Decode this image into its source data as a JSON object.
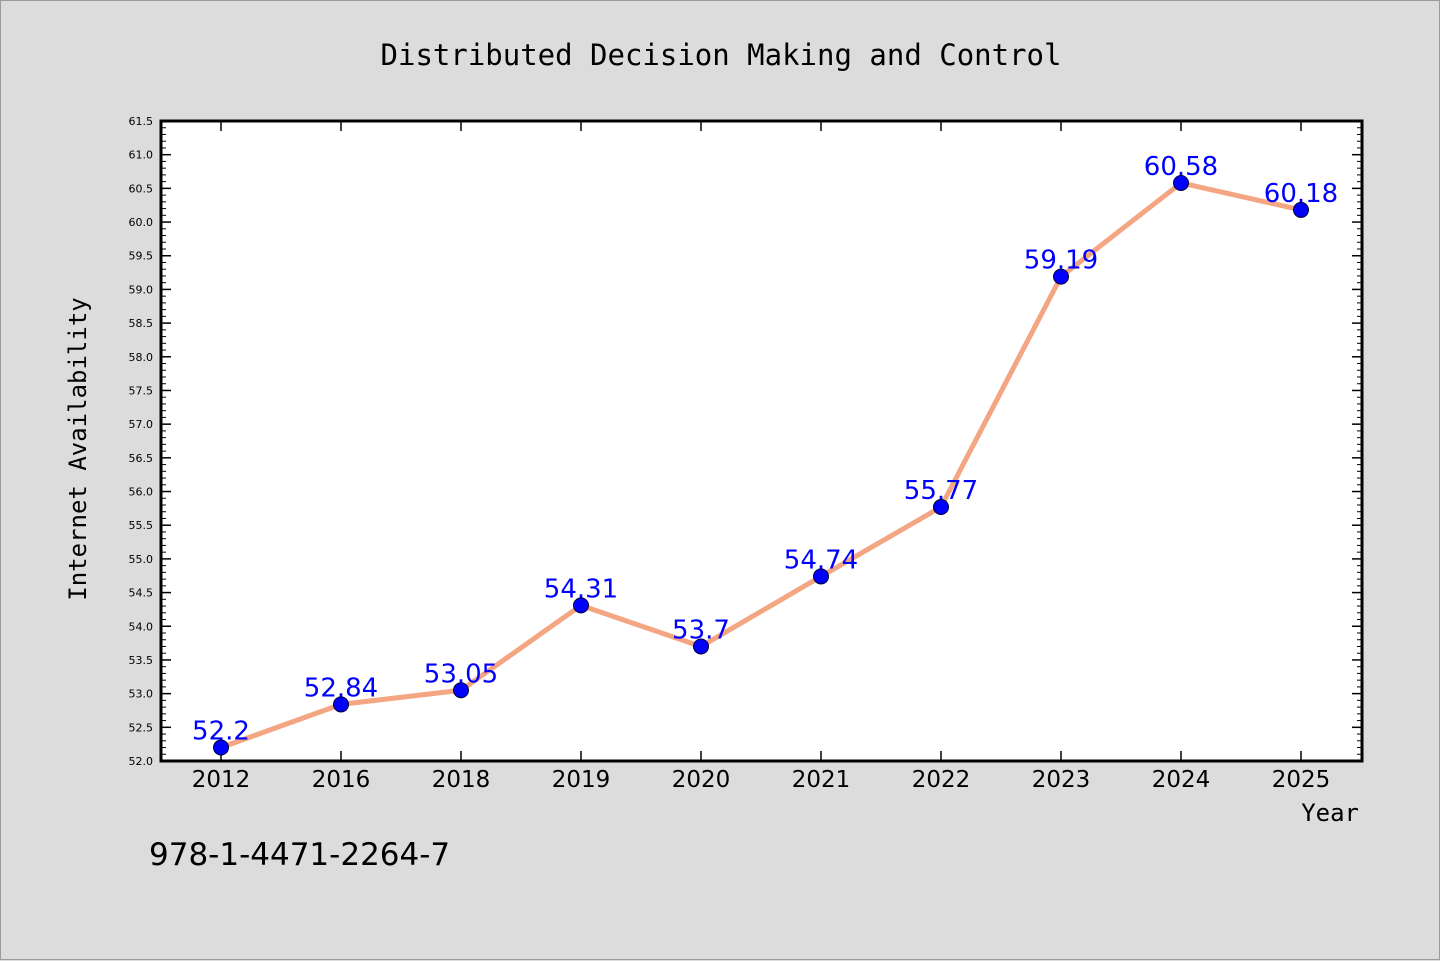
{
  "chart_data": {
    "type": "line",
    "title": "Distributed Decision Making and Control",
    "xlabel": "Year",
    "ylabel": "Internet Availability",
    "categories": [
      "2012",
      "2016",
      "2018",
      "2019",
      "2020",
      "2021",
      "2022",
      "2023",
      "2024",
      "2025"
    ],
    "series": [
      {
        "values": [
          52.2,
          52.84,
          53.05,
          54.31,
          53.7,
          54.74,
          55.77,
          59.19,
          60.58,
          60.18
        ],
        "labels": [
          "52.2",
          "52.84",
          "53.05",
          "54.31",
          "53.7",
          "54.74",
          "55.77",
          "59.19",
          "60.58",
          "60.18"
        ],
        "line_color": "#f4a582",
        "marker_color": "#0000ff",
        "label_color": "#0000ff"
      }
    ],
    "ylim": [
      52.0,
      61.5
    ],
    "yticks": [
      "52.0",
      "52.5",
      "53.0",
      "53.5",
      "54.0",
      "54.5",
      "55.0",
      "55.5",
      "56.0",
      "56.5",
      "57.0",
      "57.5",
      "58.0",
      "58.5",
      "59.0",
      "59.5",
      "60.0",
      "60.5",
      "61.0",
      "61.5"
    ],
    "grid": false,
    "legend": "none"
  },
  "footer": {
    "isbn": "978-1-4471-2264-7"
  }
}
